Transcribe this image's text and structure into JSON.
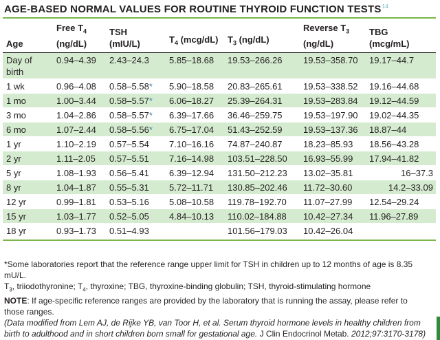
{
  "title": "AGE-BASED NORMAL VALUES FOR ROUTINE THYROID FUNCTION TESTS",
  "title_ref": "14",
  "headers": [
    {
      "line1": "",
      "line2": "Age"
    },
    {
      "line1": "Free T",
      "sub1": "4",
      "line2": "(ng/dL)"
    },
    {
      "line1": "TSH",
      "line2": "(mIU/L)"
    },
    {
      "line1": "",
      "line2": "T",
      "sub2": "4",
      "line2b": " (mcg/dL)"
    },
    {
      "line1": "",
      "line2": "T",
      "sub2": "3",
      "line2b": " (ng/dL)"
    },
    {
      "line1": "Reverse T",
      "sub1": "3",
      "line2": "(ng/dL)"
    },
    {
      "line1": "TBG",
      "line2": "(mcg/mL)"
    }
  ],
  "rows": [
    {
      "age": "Day of birth",
      "ft4": "0.94–4.39",
      "tsh": "2.43–24.3",
      "tsh_ast": "",
      "t4": "5.85–18.68",
      "t3": "19.53–266.26",
      "rt3": "19.53–358.70",
      "tbg": "19.17–44.7"
    },
    {
      "age": "1 wk",
      "ft4": "0.96–4.08",
      "tsh": "0.58–5.58",
      "tsh_ast": "*",
      "t4": "5.90–18.58",
      "t3": "20.83–265.61",
      "rt3": "19.53–338.52",
      "tbg": "19.16–44.68"
    },
    {
      "age": "1 mo",
      "ft4": "1.00–3.44",
      "tsh": "0.58–5.57",
      "tsh_ast": "*",
      "t4": "6.06–18.27",
      "t3": "25.39–264.31",
      "rt3": "19.53–283.84",
      "tbg": "19.12–44.59"
    },
    {
      "age": "3 mo",
      "ft4": "1.04–2.86",
      "tsh": "0.58–5.57",
      "tsh_ast": "*",
      "t4": "6.39–17.66",
      "t3": "36.46–259.75",
      "rt3": "19.53–197.90",
      "tbg": "19.02–44.35"
    },
    {
      "age": "6 mo",
      "ft4": "1.07–2.44",
      "tsh": "0.58–5.56",
      "tsh_ast": "*",
      "t4": "6.75–17.04",
      "t3": "51.43–252.59",
      "rt3": "19.53–137.36",
      "tbg": "18.87–44"
    },
    {
      "age": "1 yr",
      "ft4": "1.10–2.19",
      "tsh": "0.57–5.54",
      "tsh_ast": "",
      "t4": "7.10–16.16",
      "t3": "74.87–240.87",
      "rt3": "18.23–85.93",
      "tbg": "18.56–43.28"
    },
    {
      "age": "2 yr",
      "ft4": "1.11–2.05",
      "tsh": "0.57–5.51",
      "tsh_ast": "",
      "t4": "7.16–14.98",
      "t3": "103.51–228.50",
      "rt3": "16.93–55.99",
      "tbg": "17.94–41.82"
    },
    {
      "age": "5 yr",
      "ft4": "1.08–1.93",
      "tsh": "0.56–5.41",
      "tsh_ast": "",
      "t4": "6.39–12.94",
      "t3": "131.50–212.23",
      "rt3": "13.02–35.81",
      "tbg": "16–37.3"
    },
    {
      "age": "8 yr",
      "ft4": "1.04–1.87",
      "tsh": "0.55–5.31",
      "tsh_ast": "",
      "t4": "5.72–11.71",
      "t3": "130.85–202.46",
      "rt3": "11.72–30.60",
      "tbg": "14.2–33.09"
    },
    {
      "age": "12 yr",
      "ft4": "0.99–1.81",
      "tsh": "0.53–5.16",
      "tsh_ast": "",
      "t4": "5.08–10.58",
      "t3": "119.78–192.70",
      "rt3": "11.07–27.99",
      "tbg": "12.54–29.24"
    },
    {
      "age": "15 yr",
      "ft4": "1.03–1.77",
      "tsh": "0.52–5.05",
      "tsh_ast": "",
      "t4": "4.84–10.13",
      "t3": "110.02–184.88",
      "rt3": "10.42–27.34",
      "tbg": "11.96–27.89"
    },
    {
      "age": "18 yr",
      "ft4": "0.93–1.73",
      "tsh": "0.51–4.93",
      "tsh_ast": "",
      "t4": "",
      "t3": "101.56–179.03",
      "rt3": "10.42–26.04",
      "tbg": ""
    }
  ],
  "notes": {
    "footnote": "*Some laboratories report that the reference range upper limit for TSH in children up to 12 months of age is 8.35 mU/L.",
    "abbr_t": "T",
    "abbr_3": "3",
    "abbr_a": ", triiodothyronine; T",
    "abbr_4": "4",
    "abbr_b": ", thyroxine; TBG, thyroxine-binding globulin; TSH, thyroid-stimulating hormone",
    "note_label": "NOTE",
    "note_text": ": If age-specific reference ranges are provided by the laboratory that is running the assay, please refer to those ranges.",
    "source_a": "(Data modified from Lem AJ, de Rijke YB, van Toor H, et al. Serum thyroid hormone levels in healthy children from birth to adulthood and in short children born small for gestational age.",
    "source_b": " J Clin Endocrinol Metab. ",
    "source_c": "2012;97:3170-3178)"
  },
  "colors": {
    "accent_green": "#7ab648",
    "row_shade": "#d5ebd0",
    "asterisk_blue": "#3b8ab5"
  }
}
